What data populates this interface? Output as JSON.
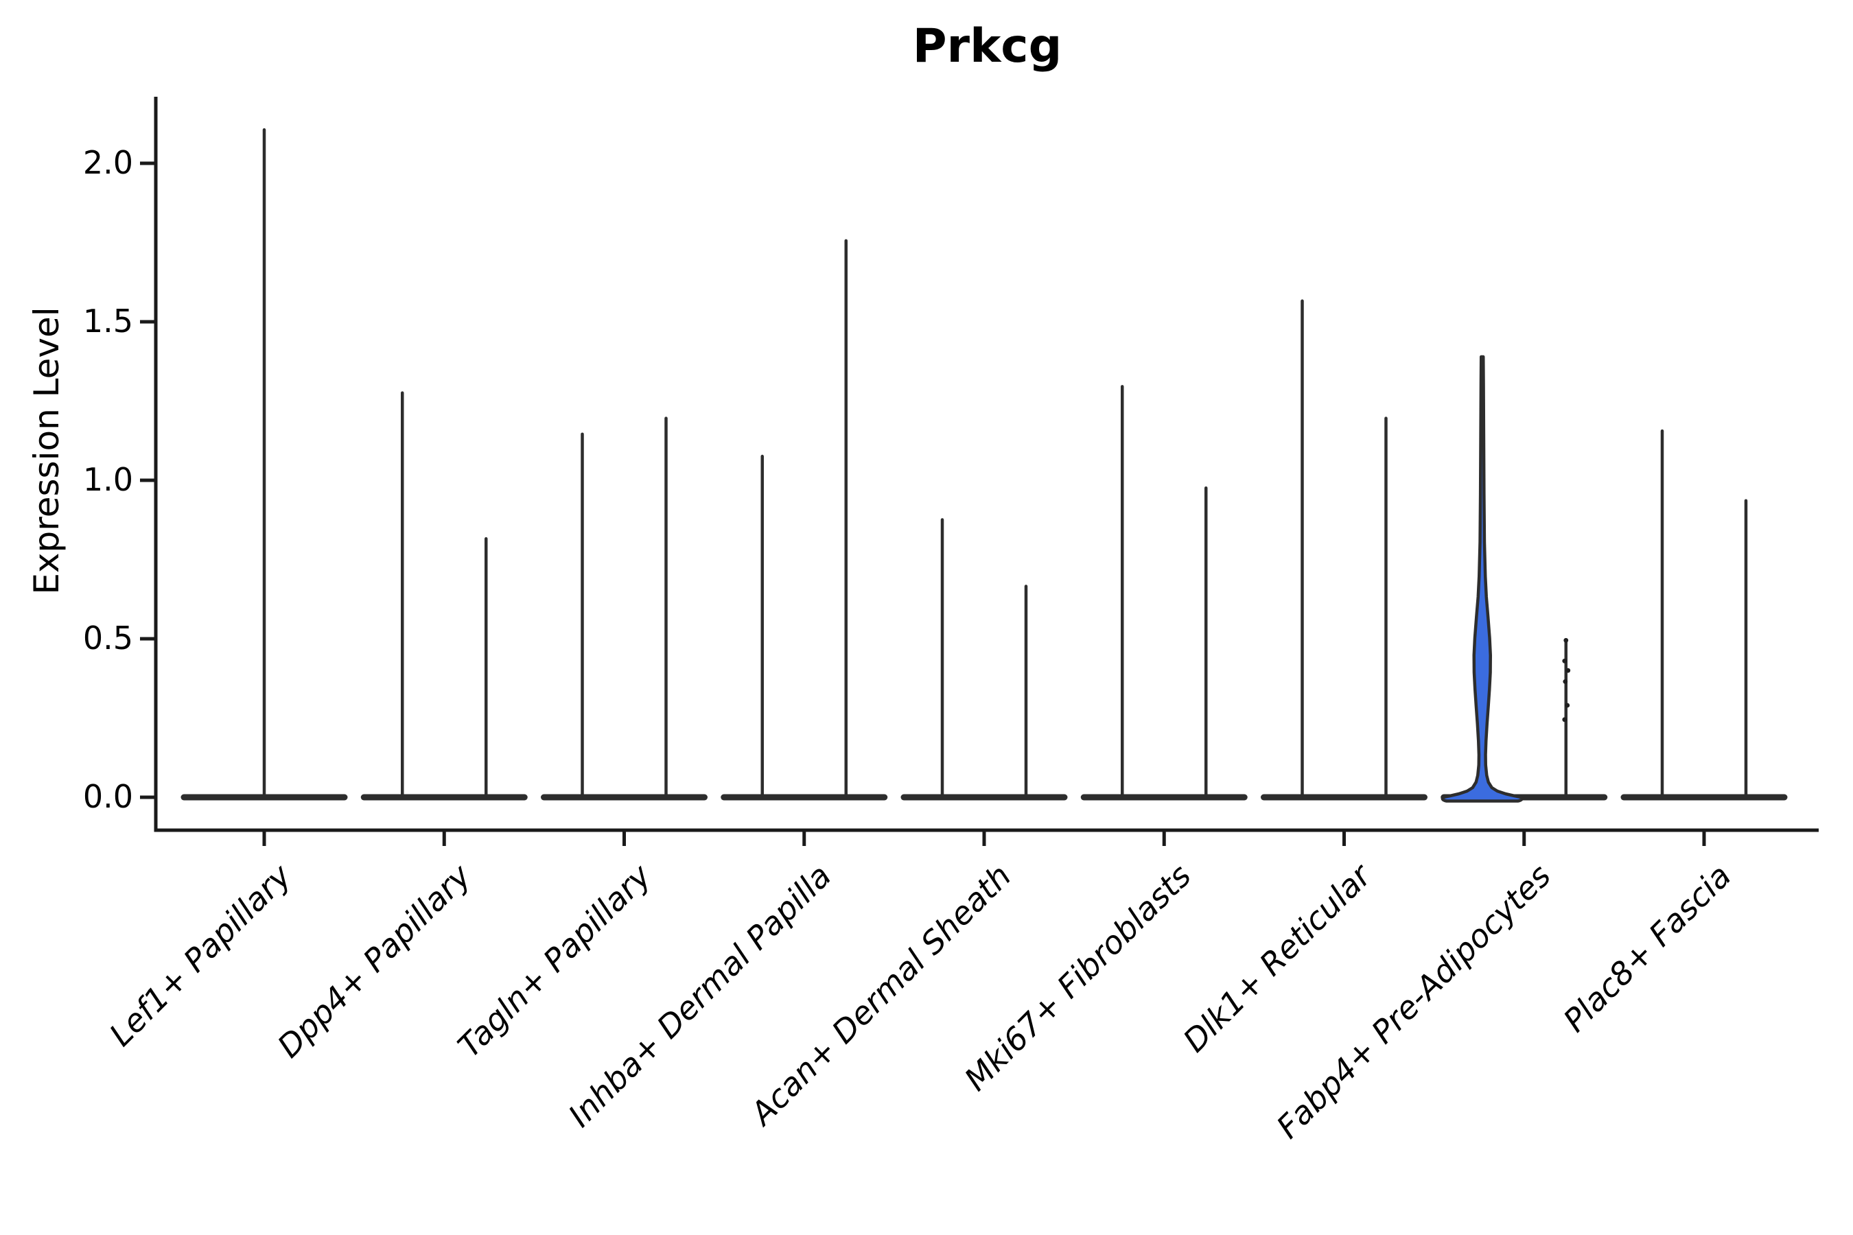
{
  "title": "Prkcg",
  "ylabel": "Expression Level",
  "colors": {
    "background": "#ffffff",
    "axis": "#1a1a1a",
    "text": "#000000",
    "violin_stroke": "#2d2d2d",
    "highlight_fill": "#3b6cdf",
    "point_color": "#1f1f1f"
  },
  "chart_data": {
    "type": "violin",
    "title": "Prkcg",
    "xlabel": "",
    "ylabel": "Expression Level",
    "ylim": [
      -0.1,
      2.21
    ],
    "yticks": [
      0.0,
      0.5,
      1.0,
      1.5,
      2.0
    ],
    "ytick_labels": [
      "0.0",
      "0.5",
      "1.0",
      "1.5",
      "2.0"
    ],
    "grid": false,
    "legend": false,
    "categories": [
      "Lef1+ Papillary",
      "Dpp4+ Papillary",
      "Tagln+ Papillary",
      "Inhba+ Dermal Papilla",
      "Acan+ Dermal Sheath",
      "Mki67+ Fibroblasts",
      "Dlk1+ Reticular",
      "Fabp4+ Pre-Adipocytes",
      "Plac8+ Fascia"
    ],
    "description": "Violin plot of Prkcg expression; most violins collapse to a flat base at 0 with a thin spike up to the max expressed cell. Each category holds two side-by-side violins except the first (single centered violin). The left violin of Fabp4+ Pre-Adipocytes is blue-filled with a visible density bulge; the right one shows jittered points.",
    "violins": [
      {
        "category": "Lef1+ Papillary",
        "spikes": [
          {
            "slot": "center",
            "max": 2.11
          }
        ]
      },
      {
        "category": "Dpp4+ Papillary",
        "spikes": [
          {
            "slot": "left",
            "max": 1.28
          },
          {
            "slot": "right",
            "max": 0.82
          }
        ]
      },
      {
        "category": "Tagln+ Papillary",
        "spikes": [
          {
            "slot": "left",
            "max": 1.15
          },
          {
            "slot": "right",
            "max": 1.2
          }
        ]
      },
      {
        "category": "Inhba+ Dermal Papilla",
        "spikes": [
          {
            "slot": "left",
            "max": 1.08
          },
          {
            "slot": "right",
            "max": 1.76
          }
        ]
      },
      {
        "category": "Acan+ Dermal Sheath",
        "spikes": [
          {
            "slot": "left",
            "max": 0.88
          },
          {
            "slot": "right",
            "max": 0.67
          }
        ]
      },
      {
        "category": "Mki67+ Fibroblasts",
        "spikes": [
          {
            "slot": "left",
            "max": 1.3
          },
          {
            "slot": "right",
            "max": 0.98
          }
        ]
      },
      {
        "category": "Dlk1+ Reticular",
        "spikes": [
          {
            "slot": "left",
            "max": 1.57
          },
          {
            "slot": "right",
            "max": 1.2
          }
        ]
      },
      {
        "category": "Fabp4+ Pre-Adipocytes",
        "spikes": [
          {
            "slot": "left",
            "max": 1.39,
            "style": "filled-violin"
          },
          {
            "slot": "right",
            "max": 0.5,
            "style": "spike-with-points",
            "points": [
              0.495,
              0.43,
              0.4,
              0.365,
              0.29,
              0.245
            ]
          }
        ]
      },
      {
        "category": "Plac8+ Fascia",
        "spikes": [
          {
            "slot": "left",
            "max": 1.16
          },
          {
            "slot": "right",
            "max": 0.94
          }
        ]
      }
    ],
    "highlight_violin": {
      "category": "Fabp4+ Pre-Adipocytes",
      "slot": "left",
      "max": 1.39,
      "fill": "#3b6cdf",
      "profile_y_halfwidth": [
        [
          520,
          1.5
        ],
        [
          560,
          1.8
        ],
        [
          640,
          2.2
        ],
        [
          720,
          2.6
        ],
        [
          790,
          3.2
        ],
        [
          840,
          4.5
        ],
        [
          870,
          6.0
        ],
        [
          900,
          8.5
        ],
        [
          930,
          10.8
        ],
        [
          955,
          12.0
        ],
        [
          980,
          11.8
        ],
        [
          1005,
          10.5
        ],
        [
          1030,
          8.8
        ],
        [
          1055,
          7.0
        ],
        [
          1080,
          5.5
        ],
        [
          1100,
          4.8
        ],
        [
          1115,
          5.0
        ],
        [
          1130,
          6.5
        ],
        [
          1140,
          9.0
        ],
        [
          1148,
          14.0
        ],
        [
          1153,
          22.0
        ],
        [
          1157,
          34.0
        ],
        [
          1160,
          47.0
        ],
        [
          1162,
          57.0
        ]
      ]
    }
  }
}
